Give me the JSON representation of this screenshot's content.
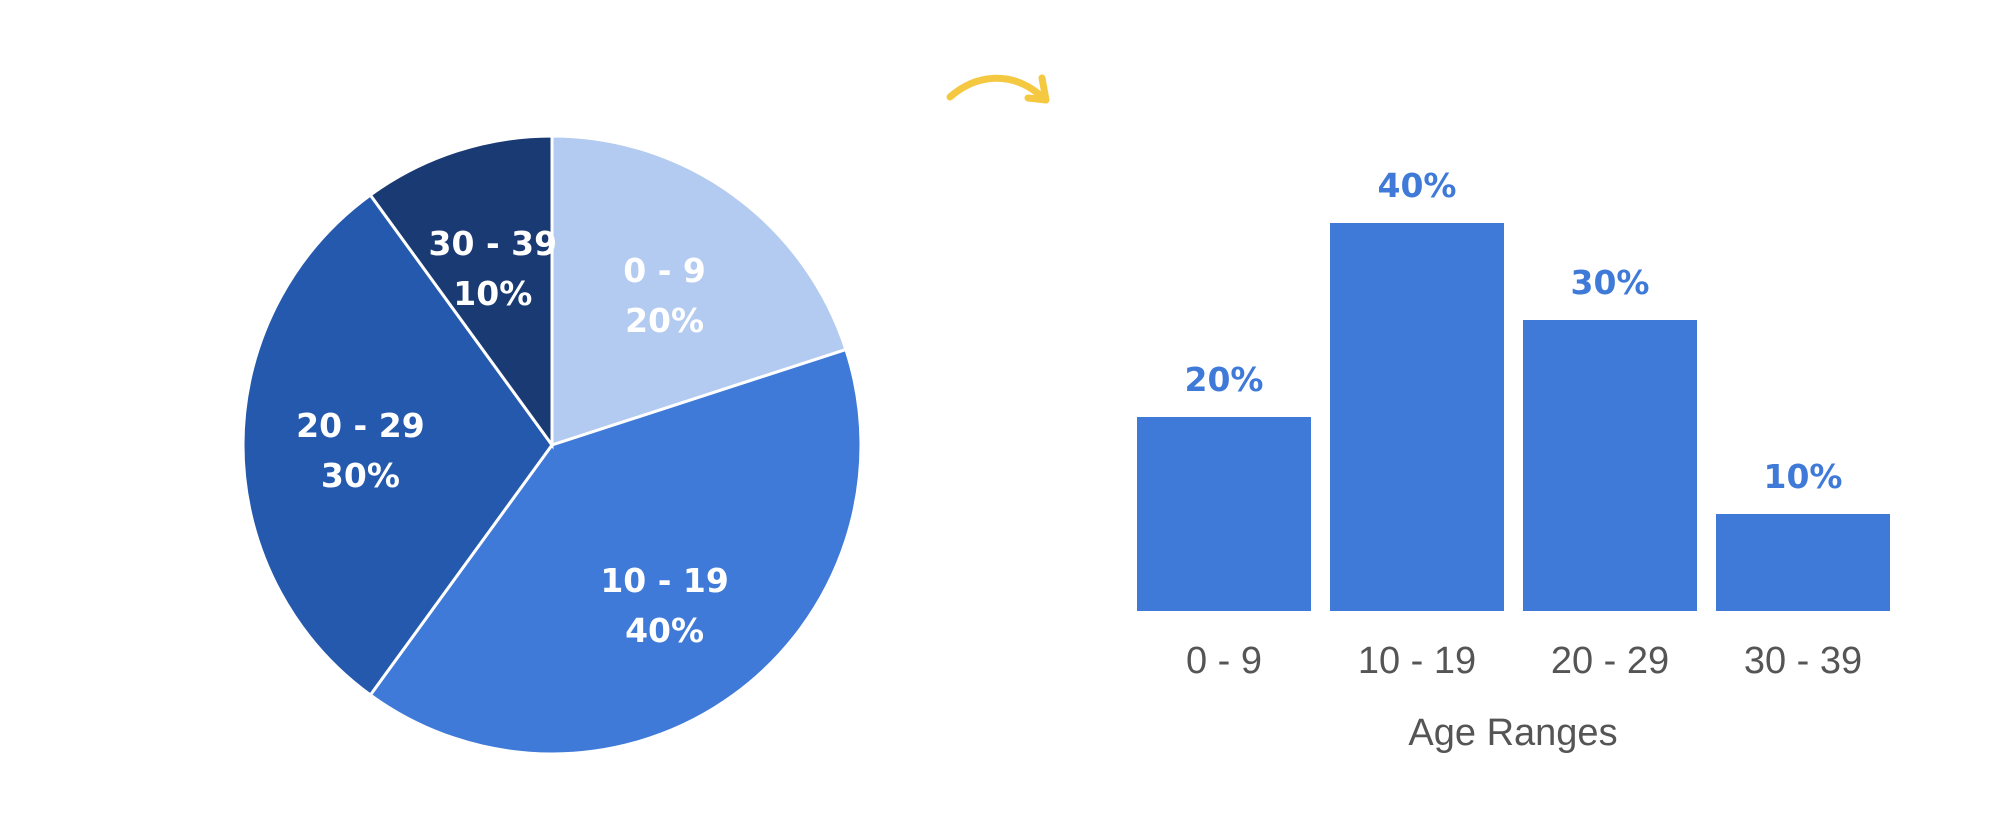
{
  "chart_data": [
    {
      "type": "pie",
      "categories": [
        "0 - 9",
        "10 - 19",
        "20 - 29",
        "30 - 39"
      ],
      "values": [
        20,
        40,
        30,
        10
      ],
      "labels": [
        "20%",
        "40%",
        "30%",
        "10%"
      ],
      "colors": [
        "#B3CBF0",
        "#3F7AD8",
        "#2559AE",
        "#1A3A73"
      ],
      "start": "top",
      "direction": "clockwise"
    },
    {
      "type": "bar",
      "categories": [
        "0 - 9",
        "10 - 19",
        "20 - 29",
        "30 - 39"
      ],
      "values": [
        20,
        40,
        30,
        10
      ],
      "labels": [
        "20%",
        "40%",
        "30%",
        "10%"
      ],
      "xlabel": "Age Ranges",
      "ylabel": "",
      "ylim": [
        0,
        40
      ],
      "grid": false,
      "bar_color": "#3F7AD8",
      "label_color": "#3F7AD8"
    }
  ],
  "decoration": {
    "arrow_color": "#F5C842",
    "arrow_icon": "curved-arrow-right"
  }
}
